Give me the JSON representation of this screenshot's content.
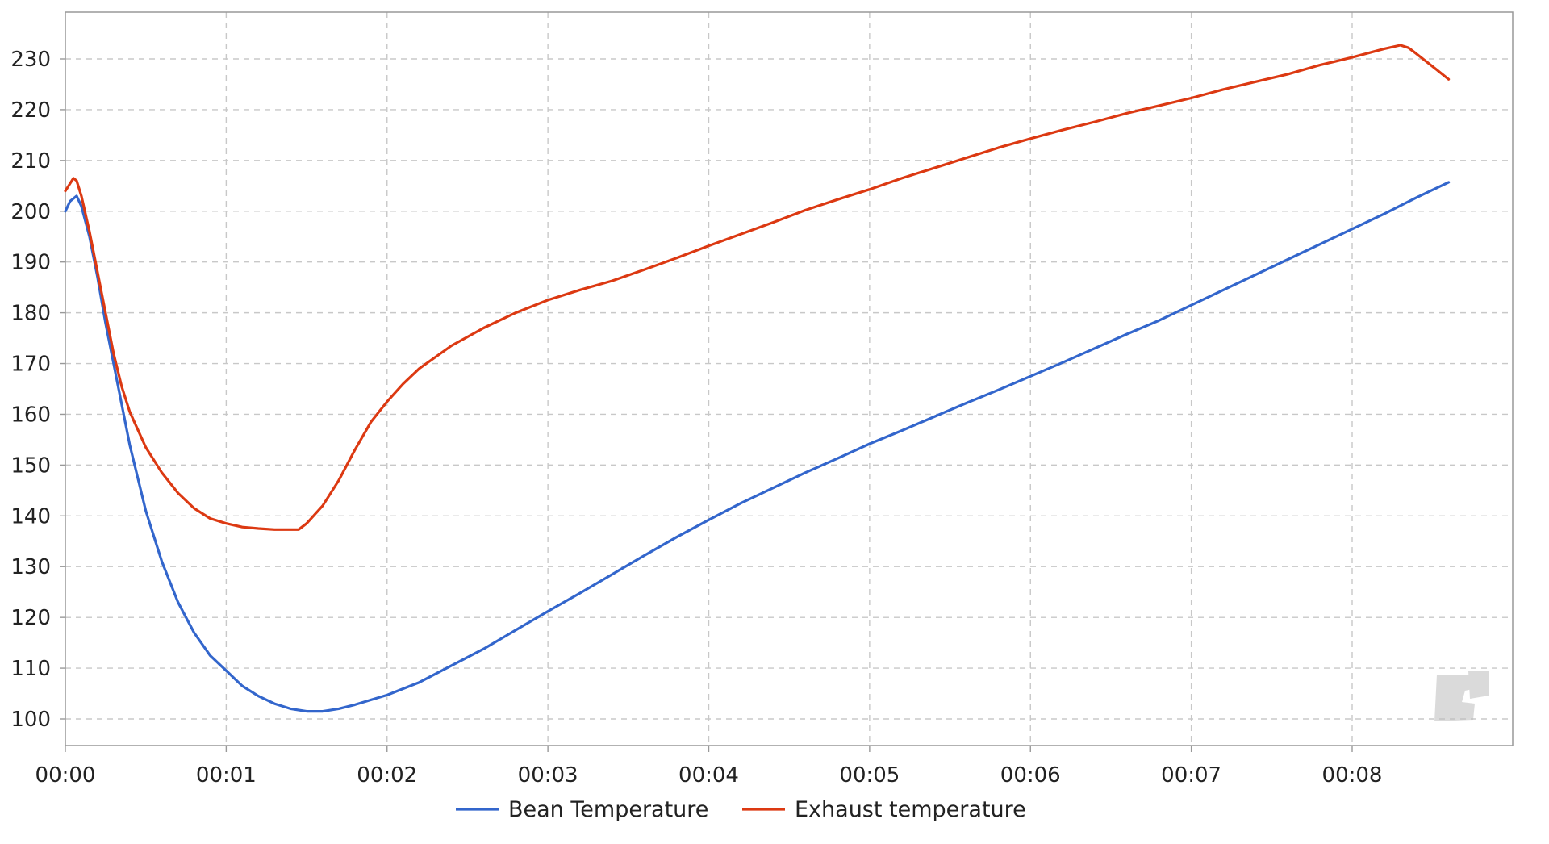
{
  "chart_data": {
    "type": "line",
    "title": "",
    "xlabel": "",
    "ylabel": "",
    "x_unit": "minutes",
    "xlim": [
      0,
      9
    ],
    "ylim": [
      95,
      240
    ],
    "grid": true,
    "legend_position": "bottom",
    "x_ticks": [
      {
        "value": 0,
        "label": "00:00"
      },
      {
        "value": 1,
        "label": "00:01"
      },
      {
        "value": 2,
        "label": "00:02"
      },
      {
        "value": 3,
        "label": "00:03"
      },
      {
        "value": 4,
        "label": "00:04"
      },
      {
        "value": 5,
        "label": "00:05"
      },
      {
        "value": 6,
        "label": "00:06"
      },
      {
        "value": 7,
        "label": "00:07"
      },
      {
        "value": 8,
        "label": "00:08"
      }
    ],
    "y_ticks": [
      100,
      110,
      120,
      130,
      140,
      150,
      160,
      170,
      180,
      190,
      200,
      210,
      220,
      230
    ],
    "series": [
      {
        "name": "Bean Temperature",
        "color": "#3366cc",
        "x": [
          0,
          0.03,
          0.07,
          0.1,
          0.15,
          0.2,
          0.25,
          0.3,
          0.35,
          0.4,
          0.5,
          0.6,
          0.7,
          0.8,
          0.9,
          1.0,
          1.1,
          1.2,
          1.3,
          1.4,
          1.5,
          1.6,
          1.7,
          1.8,
          2.0,
          2.2,
          2.4,
          2.6,
          2.8,
          3.0,
          3.2,
          3.4,
          3.6,
          3.8,
          4.0,
          4.2,
          4.4,
          4.6,
          4.8,
          5.0,
          5.2,
          5.4,
          5.6,
          5.8,
          6.0,
          6.2,
          6.4,
          6.6,
          6.8,
          7.0,
          7.2,
          7.4,
          7.6,
          7.8,
          8.0,
          8.2,
          8.4,
          8.6
        ],
        "y": [
          200,
          202,
          203,
          201,
          195,
          187,
          178,
          170,
          162,
          154,
          141,
          131,
          123,
          117,
          112.5,
          109.5,
          106.5,
          104.5,
          103,
          102,
          101.5,
          101.5,
          102,
          102.8,
          104.7,
          107.2,
          110.5,
          113.8,
          117.5,
          121.2,
          124.8,
          128.5,
          132.2,
          135.8,
          139.2,
          142.5,
          145.5,
          148.5,
          151.3,
          154.2,
          156.8,
          159.5,
          162.2,
          164.8,
          167.5,
          170.2,
          173,
          175.8,
          178.5,
          181.5,
          184.5,
          187.5,
          190.5,
          193.5,
          196.5,
          199.5,
          202.7,
          205.7
        ]
      },
      {
        "name": "Exhaust temperature",
        "color": "#dc3912",
        "x": [
          0,
          0.03,
          0.05,
          0.07,
          0.1,
          0.15,
          0.2,
          0.25,
          0.3,
          0.35,
          0.4,
          0.5,
          0.6,
          0.7,
          0.8,
          0.9,
          1.0,
          1.1,
          1.2,
          1.3,
          1.4,
          1.45,
          1.5,
          1.6,
          1.7,
          1.8,
          1.9,
          2.0,
          2.1,
          2.2,
          2.4,
          2.6,
          2.8,
          3.0,
          3.2,
          3.4,
          3.6,
          3.8,
          4.0,
          4.2,
          4.4,
          4.6,
          4.8,
          5.0,
          5.2,
          5.4,
          5.6,
          5.8,
          6.0,
          6.2,
          6.4,
          6.6,
          6.8,
          7.0,
          7.2,
          7.4,
          7.6,
          7.8,
          8.0,
          8.2,
          8.3,
          8.35,
          8.4,
          8.5,
          8.6
        ],
        "y": [
          204,
          205.5,
          206.5,
          206,
          203,
          196,
          188,
          180,
          172,
          165.5,
          160.5,
          153.5,
          148.5,
          144.5,
          141.5,
          139.5,
          138.5,
          137.8,
          137.5,
          137.3,
          137.3,
          137.3,
          138.5,
          142,
          147,
          153,
          158.5,
          162.5,
          166,
          169,
          173.5,
          177,
          180,
          182.5,
          184.5,
          186.3,
          188.5,
          190.8,
          193.2,
          195.5,
          197.8,
          200.2,
          202.3,
          204.3,
          206.5,
          208.5,
          210.5,
          212.5,
          214.3,
          216,
          217.6,
          219.3,
          220.8,
          222.3,
          224,
          225.5,
          227,
          228.8,
          230.3,
          232,
          232.7,
          232.2,
          231,
          228.5,
          226
        ]
      }
    ]
  }
}
